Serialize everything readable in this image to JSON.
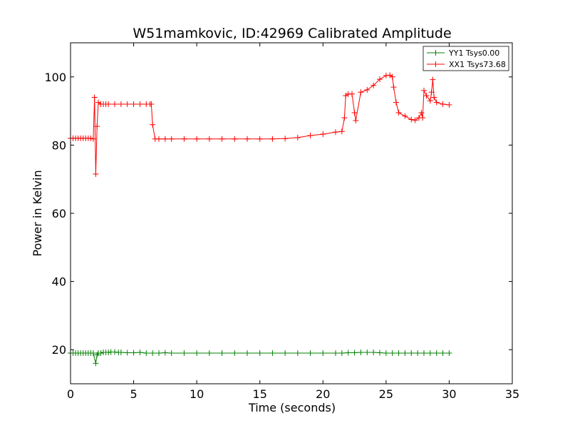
{
  "chart_data": {
    "type": "line",
    "title": "W51mamkovic, ID:42969 Calibrated Amplitude",
    "xlabel": "Time (seconds)",
    "ylabel": "Power in Kelvin",
    "xlim": [
      0,
      35
    ],
    "ylim": [
      10,
      110
    ],
    "xticks": [
      0,
      5,
      10,
      15,
      20,
      25,
      30,
      35
    ],
    "yticks": [
      20,
      40,
      60,
      80,
      100
    ],
    "grid": false,
    "legend_position": "top-right",
    "marker": "plus",
    "series": [
      {
        "name": "YY1 Tsys0.00",
        "color": "#008000",
        "x": [
          0,
          0.2,
          0.4,
          0.6,
          0.8,
          1.0,
          1.2,
          1.4,
          1.6,
          1.8,
          2.0,
          2.1,
          2.2,
          2.4,
          2.6,
          2.8,
          3.0,
          3.2,
          3.5,
          3.8,
          4.0,
          4.5,
          5.0,
          5.5,
          6.0,
          6.5,
          7.0,
          7.5,
          8.0,
          9.0,
          10.0,
          11.0,
          12.0,
          13.0,
          14.0,
          15.0,
          16.0,
          17.0,
          18.0,
          19.0,
          20.0,
          21.0,
          21.5,
          22.0,
          22.5,
          23.0,
          23.5,
          24.0,
          24.5,
          25.0,
          25.5,
          26.0,
          26.5,
          27.0,
          27.5,
          28.0,
          28.5,
          29.0,
          29.5,
          30.0
        ],
        "y": [
          19.0,
          19.0,
          19.0,
          19.0,
          19.0,
          19.0,
          19.0,
          19.0,
          19.0,
          19.0,
          16.0,
          18.5,
          19.0,
          19.0,
          19.2,
          19.2,
          19.2,
          19.3,
          19.3,
          19.2,
          19.2,
          19.1,
          19.1,
          19.2,
          19.0,
          19.0,
          19.0,
          19.1,
          19.0,
          19.0,
          19.0,
          19.0,
          19.0,
          19.0,
          19.0,
          19.0,
          19.0,
          19.0,
          19.0,
          19.0,
          19.0,
          19.0,
          19.0,
          19.1,
          19.1,
          19.2,
          19.2,
          19.2,
          19.1,
          19.0,
          19.0,
          19.0,
          19.0,
          19.0,
          19.0,
          19.0,
          19.0,
          19.0,
          19.0,
          19.0
        ]
      },
      {
        "name": "XX1 Tsys73.68",
        "color": "#ff0000",
        "x": [
          0,
          0.2,
          0.4,
          0.6,
          0.8,
          1.0,
          1.2,
          1.4,
          1.6,
          1.8,
          1.9,
          2.0,
          2.1,
          2.2,
          2.4,
          2.6,
          2.8,
          3.0,
          3.5,
          4.0,
          4.5,
          5.0,
          5.5,
          6.0,
          6.3,
          6.4,
          6.5,
          6.7,
          7.0,
          7.5,
          8.0,
          9.0,
          10.0,
          11.0,
          12.0,
          13.0,
          14.0,
          15.0,
          16.0,
          17.0,
          18.0,
          19.0,
          20.0,
          21.0,
          21.5,
          21.7,
          21.8,
          22.0,
          22.3,
          22.5,
          22.6,
          23.0,
          23.5,
          24.0,
          24.5,
          25.0,
          25.3,
          25.5,
          25.6,
          25.8,
          26.0,
          26.5,
          27.0,
          27.3,
          27.6,
          27.8,
          27.9,
          28.0,
          28.2,
          28.5,
          28.6,
          28.7,
          28.8,
          29.0,
          29.5,
          30.0
        ],
        "y": [
          82.0,
          82.0,
          82.0,
          82.0,
          82.0,
          82.0,
          82.0,
          82.0,
          82.0,
          81.8,
          94.0,
          71.5,
          85.5,
          92.5,
          92.0,
          92.0,
          92.0,
          92.0,
          92.0,
          92.0,
          92.0,
          92.0,
          92.0,
          92.0,
          92.0,
          92.0,
          86.0,
          81.8,
          81.8,
          81.8,
          81.8,
          81.8,
          81.8,
          81.8,
          81.8,
          81.8,
          81.8,
          81.8,
          81.8,
          81.9,
          82.2,
          82.8,
          83.2,
          83.8,
          84.0,
          88.0,
          94.5,
          95.0,
          95.0,
          89.5,
          87.2,
          95.5,
          96.2,
          97.5,
          99.3,
          100.4,
          100.5,
          100.0,
          97.0,
          92.5,
          89.5,
          88.5,
          87.5,
          87.3,
          88.0,
          89.5,
          88.0,
          96.0,
          94.5,
          93.0,
          95.5,
          99.2,
          94.0,
          92.5,
          92.0,
          91.8
        ]
      }
    ]
  }
}
